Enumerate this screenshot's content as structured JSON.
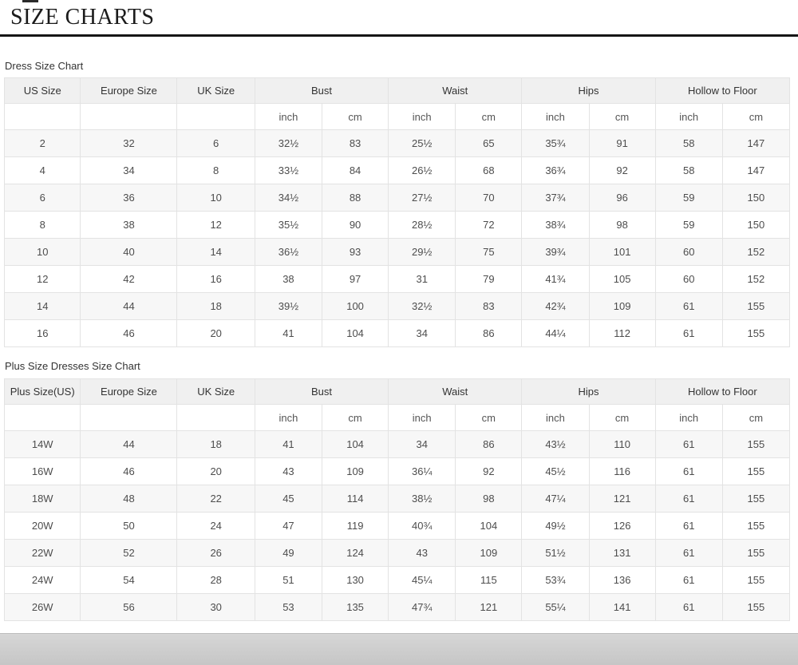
{
  "page": {
    "title": "SIZE CHARTS"
  },
  "tables": [
    {
      "label": "Dress Size Chart",
      "groups": [
        "US Size",
        "Europe Size",
        "UK Size",
        "Bust",
        "Waist",
        "Hips",
        "Hollow to Floor"
      ],
      "units": [
        "inch",
        "cm"
      ],
      "rows": [
        [
          "2",
          "32",
          "6",
          "32½",
          "83",
          "25½",
          "65",
          "35¾",
          "91",
          "58",
          "147"
        ],
        [
          "4",
          "34",
          "8",
          "33½",
          "84",
          "26½",
          "68",
          "36¾",
          "92",
          "58",
          "147"
        ],
        [
          "6",
          "36",
          "10",
          "34½",
          "88",
          "27½",
          "70",
          "37¾",
          "96",
          "59",
          "150"
        ],
        [
          "8",
          "38",
          "12",
          "35½",
          "90",
          "28½",
          "72",
          "38¾",
          "98",
          "59",
          "150"
        ],
        [
          "10",
          "40",
          "14",
          "36½",
          "93",
          "29½",
          "75",
          "39¾",
          "101",
          "60",
          "152"
        ],
        [
          "12",
          "42",
          "16",
          "38",
          "97",
          "31",
          "79",
          "41¾",
          "105",
          "60",
          "152"
        ],
        [
          "14",
          "44",
          "18",
          "39½",
          "100",
          "32½",
          "83",
          "42¾",
          "109",
          "61",
          "155"
        ],
        [
          "16",
          "46",
          "20",
          "41",
          "104",
          "34",
          "86",
          "44¼",
          "112",
          "61",
          "155"
        ]
      ]
    },
    {
      "label": "Plus Size Dresses Size Chart",
      "groups": [
        "Plus Size(US)",
        "Europe Size",
        "UK Size",
        "Bust",
        "Waist",
        "Hips",
        "Hollow to Floor"
      ],
      "units": [
        "inch",
        "cm"
      ],
      "rows": [
        [
          "14W",
          "44",
          "18",
          "41",
          "104",
          "34",
          "86",
          "43½",
          "110",
          "61",
          "155"
        ],
        [
          "16W",
          "46",
          "20",
          "43",
          "109",
          "36¼",
          "92",
          "45½",
          "116",
          "61",
          "155"
        ],
        [
          "18W",
          "48",
          "22",
          "45",
          "114",
          "38½",
          "98",
          "47¼",
          "121",
          "61",
          "155"
        ],
        [
          "20W",
          "50",
          "24",
          "47",
          "119",
          "40¾",
          "104",
          "49½",
          "126",
          "61",
          "155"
        ],
        [
          "22W",
          "52",
          "26",
          "49",
          "124",
          "43",
          "109",
          "51½",
          "131",
          "61",
          "155"
        ],
        [
          "24W",
          "54",
          "28",
          "51",
          "130",
          "45¼",
          "115",
          "53¾",
          "136",
          "61",
          "155"
        ],
        [
          "26W",
          "56",
          "30",
          "53",
          "135",
          "47¾",
          "121",
          "55¼",
          "141",
          "61",
          "155"
        ]
      ]
    }
  ]
}
